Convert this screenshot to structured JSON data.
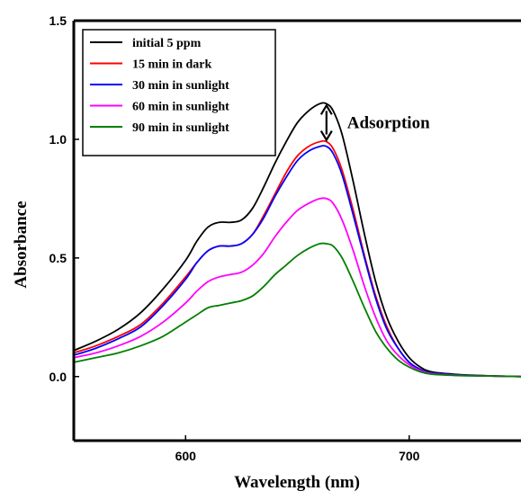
{
  "chart_data": {
    "type": "line",
    "xlabel": "Wavelength (nm)",
    "ylabel": "Absorbance",
    "xlim": [
      550,
      750
    ],
    "ylim": [
      -0.27,
      1.5
    ],
    "x_ticks": [
      600,
      700
    ],
    "y_ticks": [
      0.0,
      0.5,
      1.0,
      1.5
    ],
    "x_tick_labels": [
      "600",
      "700"
    ],
    "y_tick_labels": [
      "0.0",
      "0.5",
      "1.0",
      "1.5"
    ],
    "grid": false,
    "legend_position": "top-left",
    "annotation": {
      "text": "Adsorption",
      "x": 663,
      "y_from": 0.99,
      "y_to": 1.15
    },
    "x": [
      550,
      560,
      570,
      580,
      590,
      600,
      605,
      610,
      615,
      620,
      625,
      630,
      635,
      640,
      645,
      650,
      655,
      660,
      663,
      666,
      670,
      675,
      680,
      685,
      690,
      695,
      700,
      705,
      710,
      720,
      730,
      740,
      750
    ],
    "series": [
      {
        "name": "initial 5 ppm",
        "color": "#000000",
        "values": [
          0.11,
          0.15,
          0.2,
          0.27,
          0.37,
          0.49,
          0.57,
          0.63,
          0.65,
          0.65,
          0.66,
          0.71,
          0.8,
          0.9,
          0.99,
          1.07,
          1.12,
          1.15,
          1.15,
          1.12,
          1.02,
          0.82,
          0.6,
          0.4,
          0.25,
          0.15,
          0.08,
          0.04,
          0.02,
          0.01,
          0.005,
          0.002,
          0.0
        ]
      },
      {
        "name": "15 min in dark",
        "color": "#ff0000",
        "values": [
          0.1,
          0.13,
          0.17,
          0.22,
          0.31,
          0.42,
          0.48,
          0.53,
          0.55,
          0.55,
          0.56,
          0.6,
          0.68,
          0.77,
          0.86,
          0.93,
          0.97,
          0.99,
          0.99,
          0.96,
          0.87,
          0.7,
          0.51,
          0.34,
          0.21,
          0.12,
          0.06,
          0.03,
          0.015,
          0.008,
          0.004,
          0.002,
          0.0
        ]
      },
      {
        "name": "30 min in sunlight",
        "color": "#0000ff",
        "values": [
          0.09,
          0.12,
          0.16,
          0.21,
          0.3,
          0.41,
          0.48,
          0.53,
          0.55,
          0.55,
          0.56,
          0.6,
          0.67,
          0.76,
          0.84,
          0.91,
          0.95,
          0.97,
          0.97,
          0.94,
          0.85,
          0.68,
          0.5,
          0.33,
          0.2,
          0.12,
          0.06,
          0.03,
          0.015,
          0.008,
          0.004,
          0.002,
          0.0
        ]
      },
      {
        "name": "60 min in sunlight",
        "color": "#ff00ff",
        "values": [
          0.08,
          0.1,
          0.13,
          0.17,
          0.23,
          0.31,
          0.36,
          0.4,
          0.42,
          0.43,
          0.44,
          0.47,
          0.52,
          0.59,
          0.65,
          0.7,
          0.73,
          0.75,
          0.75,
          0.73,
          0.66,
          0.53,
          0.38,
          0.25,
          0.15,
          0.09,
          0.05,
          0.025,
          0.012,
          0.006,
          0.003,
          0.002,
          0.0
        ]
      },
      {
        "name": "90 min in sunlight",
        "color": "#008000",
        "values": [
          0.06,
          0.08,
          0.1,
          0.13,
          0.17,
          0.23,
          0.26,
          0.29,
          0.3,
          0.31,
          0.32,
          0.34,
          0.38,
          0.43,
          0.47,
          0.51,
          0.54,
          0.56,
          0.56,
          0.55,
          0.5,
          0.4,
          0.29,
          0.19,
          0.12,
          0.07,
          0.04,
          0.02,
          0.01,
          0.005,
          0.003,
          0.002,
          0.0
        ]
      }
    ]
  }
}
